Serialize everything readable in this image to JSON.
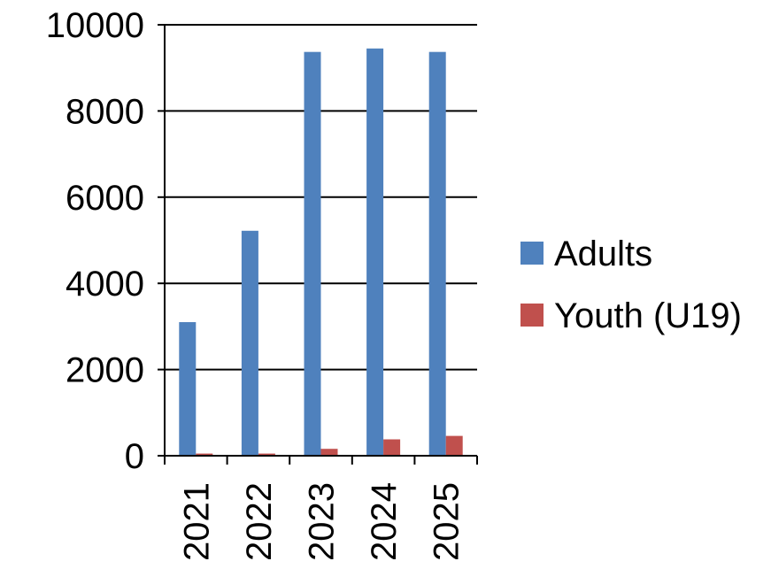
{
  "chart_data": {
    "type": "bar",
    "title": "",
    "xlabel": "",
    "ylabel": "",
    "categories": [
      "2021",
      "2022",
      "2023",
      "2024",
      "2025"
    ],
    "series": [
      {
        "name": "Adults",
        "color": "#4F81BD",
        "values": [
          3100,
          5220,
          9370,
          9450,
          9370
        ]
      },
      {
        "name": "Youth (U19)",
        "color": "#C0504D",
        "values": [
          50,
          50,
          160,
          380,
          460
        ]
      }
    ],
    "ylim": [
      0,
      10000
    ],
    "yticks": [
      0,
      2000,
      4000,
      6000,
      8000,
      10000
    ],
    "grid": true,
    "legend_position": "right"
  }
}
